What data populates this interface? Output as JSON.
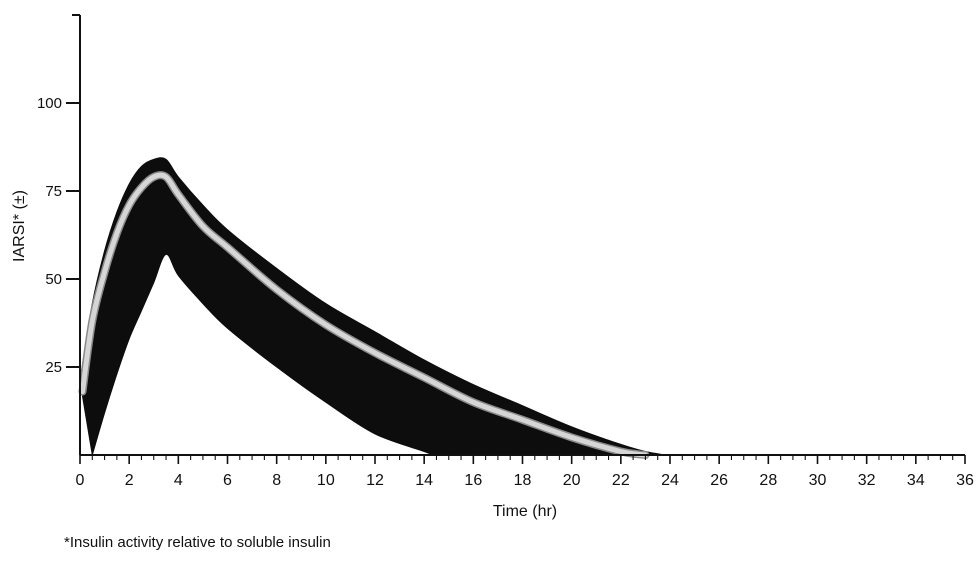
{
  "chart_data": {
    "type": "area",
    "title": "",
    "xlabel": "Time (hr)",
    "ylabel": "IARSI* (±)",
    "xlim": [
      0,
      36
    ],
    "ylim": [
      0,
      100
    ],
    "x_ticks": [
      0,
      2,
      4,
      6,
      8,
      10,
      12,
      14,
      16,
      18,
      20,
      22,
      24,
      26,
      28,
      30,
      32,
      34,
      36
    ],
    "y_ticks": [
      25,
      50,
      75,
      100
    ],
    "grid": false,
    "series": [
      {
        "role": "band_upper",
        "x": [
          0,
          0.5,
          1,
          1.5,
          2,
          2.5,
          3,
          3.5,
          4,
          5,
          6,
          8,
          10,
          12,
          14,
          16,
          18,
          20,
          22,
          23,
          23.8
        ],
        "y": [
          21,
          43,
          58,
          69,
          77,
          82,
          84,
          84,
          79,
          71,
          64,
          53,
          43,
          35,
          27,
          20,
          14,
          8,
          3,
          1,
          0
        ]
      },
      {
        "role": "band_lower",
        "x": [
          0.5,
          1,
          1.5,
          2,
          2.5,
          3,
          3.5,
          4,
          5,
          6,
          8,
          10,
          12,
          14,
          14.3
        ],
        "y": [
          0,
          12,
          23,
          33,
          41,
          49,
          57,
          51,
          43,
          36,
          25,
          15,
          6,
          1,
          0
        ]
      },
      {
        "role": "mean",
        "x": [
          0.1,
          0.5,
          1,
          1.5,
          2,
          2.5,
          3,
          3.5,
          4,
          5,
          6,
          8,
          10,
          12,
          14,
          16,
          18,
          20,
          22,
          23
        ],
        "y": [
          18,
          38,
          52,
          63,
          71,
          76,
          79,
          79,
          74,
          65,
          59,
          47,
          37,
          29,
          22,
          15,
          10,
          5,
          1,
          0
        ]
      }
    ],
    "colors": {
      "band": "#0d0d0d",
      "mean_line": "#d6d6d6",
      "axis": "#111111"
    }
  },
  "footnote": "*Insulin activity relative to soluble insulin"
}
